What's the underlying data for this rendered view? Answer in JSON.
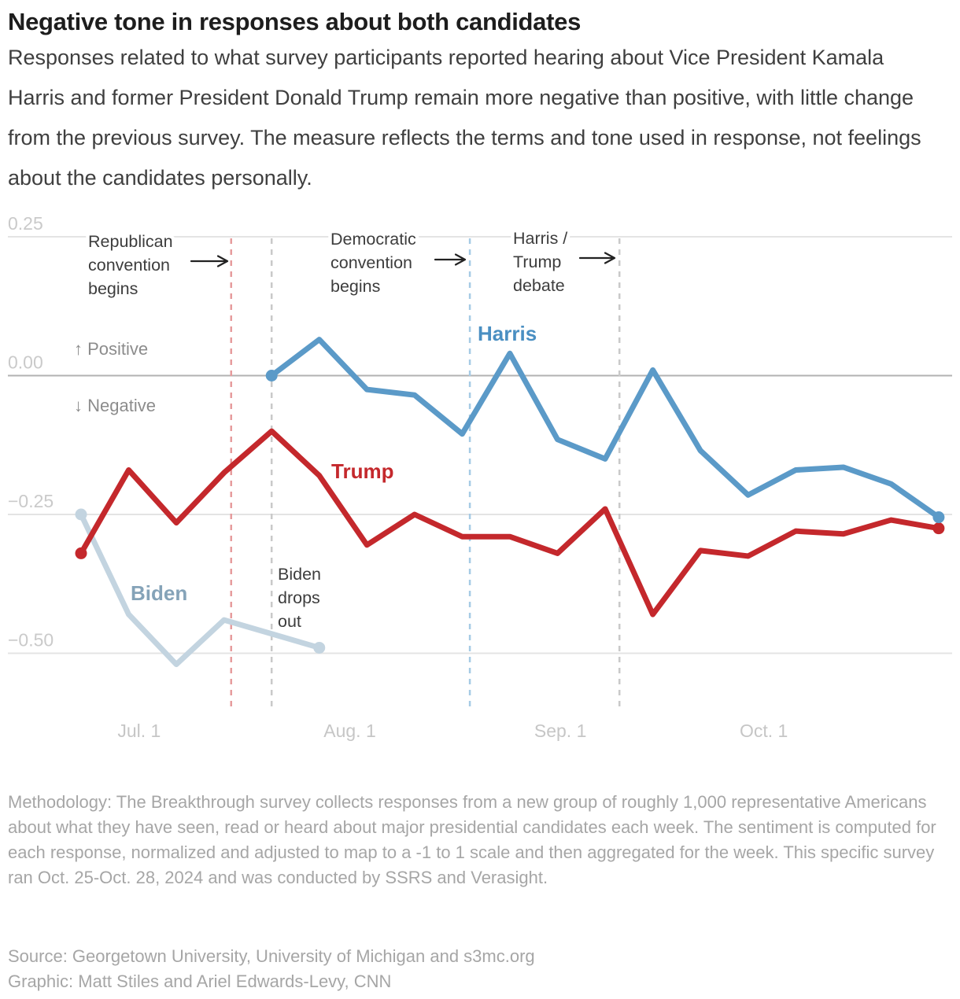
{
  "header": {
    "title": "Negative tone in responses about both candidates",
    "subtitle": "Responses related to what survey participants reported hearing about Vice President Kamala Harris and former President Donald Trump remain more negative than positive, with little change from the previous survey. The measure reflects the terms and tone used in response, not feelings about the candidates personally."
  },
  "chart_data": {
    "type": "line",
    "x_unit": "weeks",
    "grid": "horizontal",
    "ylim": [
      -0.6,
      0.3
    ],
    "yticks": [
      {
        "value": 0.25,
        "label": "0.25"
      },
      {
        "value": 0.0,
        "label": "0.00"
      },
      {
        "value": -0.25,
        "label": "−0.25"
      },
      {
        "value": -0.5,
        "label": "−0.50"
      }
    ],
    "xticks": [
      {
        "label": "Jul. 1",
        "week": 1.22
      },
      {
        "label": "Aug. 1",
        "week": 5.64
      },
      {
        "label": "Sep. 1",
        "week": 10.06
      },
      {
        "label": "Oct. 1",
        "week": 14.33
      }
    ],
    "direction_labels": {
      "up": "↑ Positive",
      "down": "↓ Negative"
    },
    "series": [
      {
        "name": "Biden",
        "color": "#c3d4e0",
        "label_color": "#85a3b8",
        "start_week": 0,
        "values": [
          -0.25,
          -0.43,
          -0.52,
          -0.44,
          -0.465,
          -0.49
        ]
      },
      {
        "name": "Trump",
        "color": "#c4282c",
        "label_color": "#c4282c",
        "start_week": 0,
        "values": [
          -0.32,
          -0.17,
          -0.265,
          -0.175,
          -0.1,
          -0.18,
          -0.305,
          -0.25,
          -0.29,
          -0.29,
          -0.32,
          -0.24,
          -0.43,
          -0.315,
          -0.325,
          -0.28,
          -0.285,
          -0.26,
          -0.275
        ]
      },
      {
        "name": "Harris",
        "color": "#5b9ac8",
        "label_color": "#4a8fc2",
        "start_week": 4,
        "values": [
          0.0,
          0.065,
          -0.025,
          -0.035,
          -0.105,
          0.04,
          -0.115,
          -0.15,
          0.01,
          -0.135,
          -0.215,
          -0.17,
          -0.165,
          -0.195,
          -0.255
        ]
      }
    ],
    "events": [
      {
        "id": "rnc",
        "lines": [
          "Republican",
          "convention",
          "begins"
        ],
        "week": 3.15,
        "line_color": "#e69b9c"
      },
      {
        "id": "biden_out",
        "lines": [
          "Biden",
          "drops",
          "out"
        ],
        "week": 4.0,
        "line_color": "#c9c9c9"
      },
      {
        "id": "dnc",
        "lines": [
          "Democratic",
          "convention",
          "begins"
        ],
        "week": 8.16,
        "line_color": "#a6cbe5"
      },
      {
        "id": "debate",
        "lines": [
          "Harris /",
          "Trump",
          "debate"
        ],
        "week": 11.3,
        "line_color": "#c9c9c9"
      }
    ]
  },
  "footer": {
    "methodology": "Methodology: The Breakthrough survey collects responses from a new group of roughly 1,000 representative Americans about what they have seen, read or heard about major presidential candidates each week. The sentiment is computed for each response, normalized and adjusted to map to a -1 to 1 scale and then aggregated for the week. This specific survey ran Oct. 25-Oct. 28, 2024 and was conducted by SSRS and Verasight.",
    "source": "Source: Georgetown University, University of Michigan and s3mc.org",
    "credit": "Graphic: Matt Stiles and Ariel Edwards-Levy, CNN"
  }
}
